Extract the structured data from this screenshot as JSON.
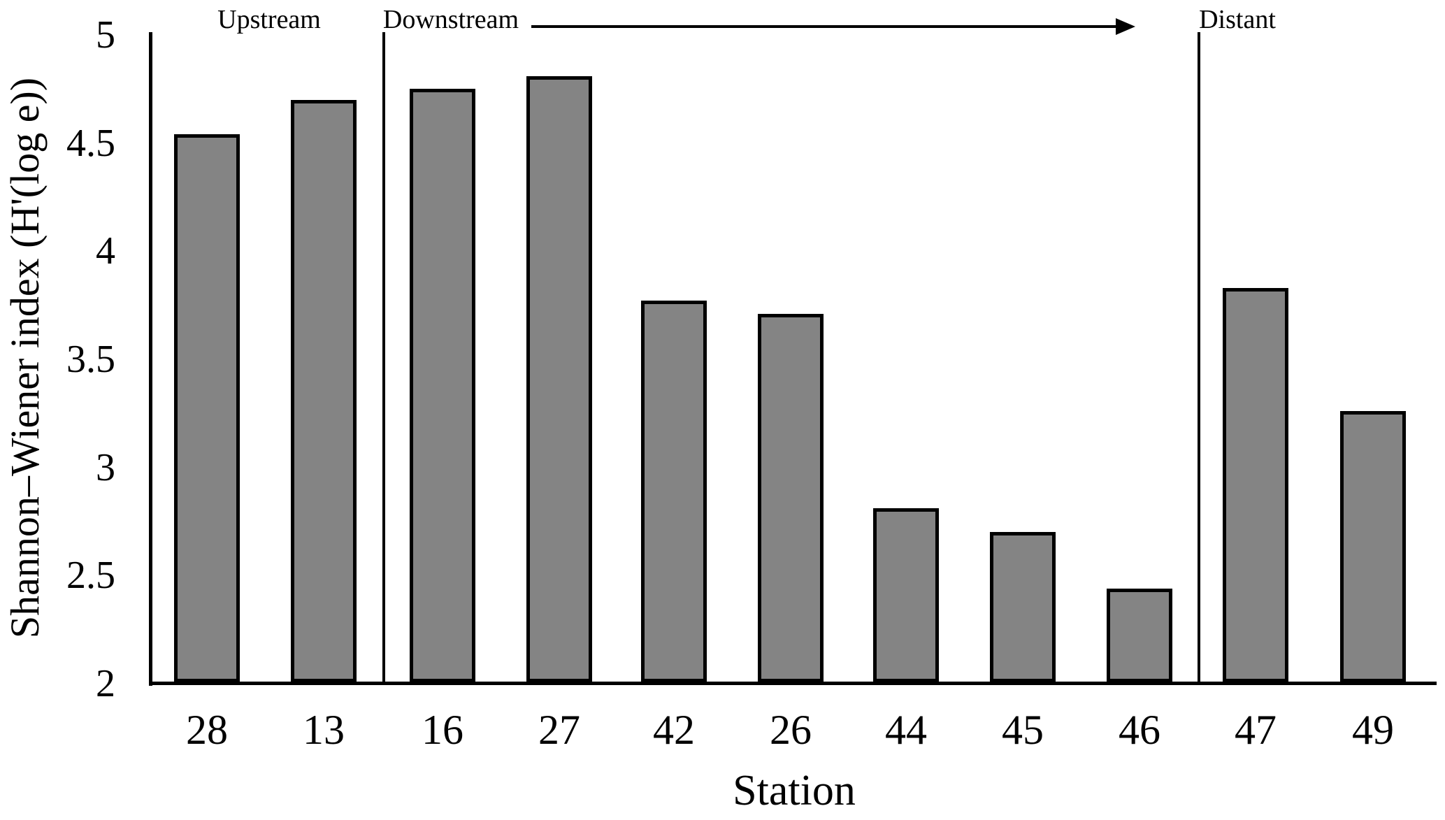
{
  "chart_data": {
    "type": "bar",
    "title": "",
    "xlabel": "Station",
    "ylabel": "Shannon–Wiener index (H'(log e))",
    "categories": [
      "28",
      "13",
      "16",
      "27",
      "42",
      "26",
      "44",
      "45",
      "46",
      "47",
      "49"
    ],
    "values": [
      4.54,
      4.7,
      4.75,
      4.81,
      3.77,
      3.71,
      2.81,
      2.7,
      2.44,
      3.83,
      3.26
    ],
    "ylim": [
      2,
      5
    ],
    "ytick_labels": [
      "5",
      "4.5",
      "4",
      "3.5",
      "3",
      "2.5",
      "2"
    ],
    "ytick_values": [
      5,
      4.5,
      4,
      3.5,
      3,
      2.5,
      2
    ],
    "grid": false,
    "legend_position": "none",
    "bar_fill_color": "#848484",
    "bar_border_color": "#000000",
    "groups": [
      {
        "label": "Upstream",
        "stations": [
          "28",
          "13"
        ],
        "arrow": false
      },
      {
        "label": "Downstream",
        "stations": [
          "16",
          "27",
          "42",
          "26",
          "44",
          "45",
          "46"
        ],
        "arrow": true
      },
      {
        "label": "Distant",
        "stations": [
          "47",
          "49"
        ],
        "arrow": false
      }
    ]
  }
}
